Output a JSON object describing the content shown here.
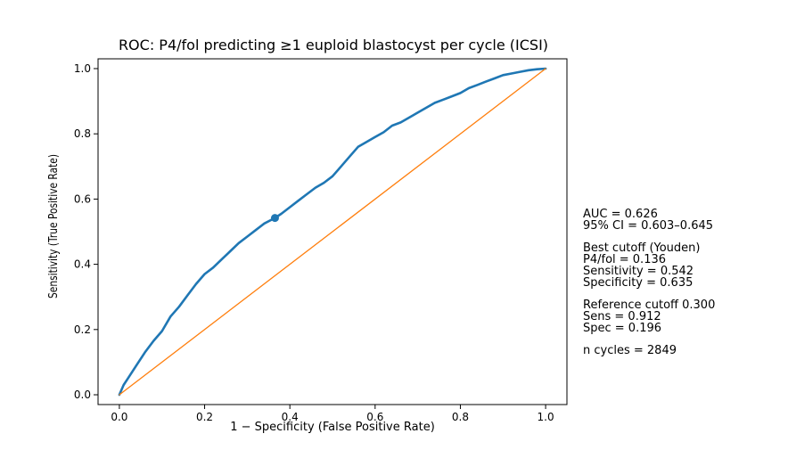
{
  "chart_data": {
    "type": "line",
    "title": "ROC: P4/fol predicting ≥1 euploid blastocyst per cycle (ICSI)",
    "xlabel": "1 − Specificity (False Positive Rate)",
    "ylabel": "Sensitivity (True Positive Rate)",
    "xlim": [
      -0.05,
      1.05
    ],
    "ylim": [
      -0.03,
      1.03
    ],
    "x_ticks": [
      "0.0",
      "0.2",
      "0.4",
      "0.6",
      "0.8",
      "1.0"
    ],
    "y_ticks": [
      "0.0",
      "0.2",
      "0.4",
      "0.6",
      "0.8",
      "1.0"
    ],
    "grid": false,
    "series": [
      {
        "kind": "roc",
        "color": "#1f77b4",
        "x": [
          0.0,
          0.01,
          0.02,
          0.04,
          0.06,
          0.08,
          0.1,
          0.12,
          0.14,
          0.16,
          0.18,
          0.2,
          0.22,
          0.24,
          0.26,
          0.28,
          0.3,
          0.32,
          0.34,
          0.365,
          0.38,
          0.4,
          0.42,
          0.44,
          0.46,
          0.48,
          0.5,
          0.52,
          0.54,
          0.56,
          0.58,
          0.6,
          0.62,
          0.64,
          0.66,
          0.68,
          0.7,
          0.72,
          0.74,
          0.76,
          0.78,
          0.8,
          0.82,
          0.84,
          0.86,
          0.88,
          0.9,
          0.92,
          0.94,
          0.96,
          0.98,
          1.0
        ],
        "y": [
          0.0,
          0.03,
          0.05,
          0.09,
          0.13,
          0.165,
          0.195,
          0.24,
          0.27,
          0.305,
          0.34,
          0.37,
          0.39,
          0.415,
          0.44,
          0.465,
          0.485,
          0.505,
          0.525,
          0.542,
          0.555,
          0.575,
          0.595,
          0.615,
          0.635,
          0.65,
          0.67,
          0.7,
          0.73,
          0.76,
          0.775,
          0.79,
          0.805,
          0.825,
          0.835,
          0.85,
          0.865,
          0.88,
          0.895,
          0.905,
          0.915,
          0.925,
          0.94,
          0.95,
          0.96,
          0.97,
          0.98,
          0.985,
          0.99,
          0.995,
          0.998,
          1.0
        ]
      },
      {
        "kind": "chance-diagonal",
        "color": "#ff7f0e",
        "x": [
          0.0,
          1.0
        ],
        "y": [
          0.0,
          1.0
        ]
      }
    ],
    "highlight_point": {
      "x": 0.365,
      "y": 0.542,
      "color": "#1f77b4"
    }
  },
  "annotation": {
    "blocks": [
      [
        "AUC = 0.626",
        "95% CI = 0.603–0.645"
      ],
      [
        "Best cutoff (Youden)",
        "P4/fol = 0.136",
        "Sensitivity = 0.542",
        "Specificity = 0.635"
      ],
      [
        "Reference cutoff 0.300",
        "Sens = 0.912",
        "Spec = 0.196"
      ],
      [
        "n cycles = 2849"
      ]
    ]
  }
}
